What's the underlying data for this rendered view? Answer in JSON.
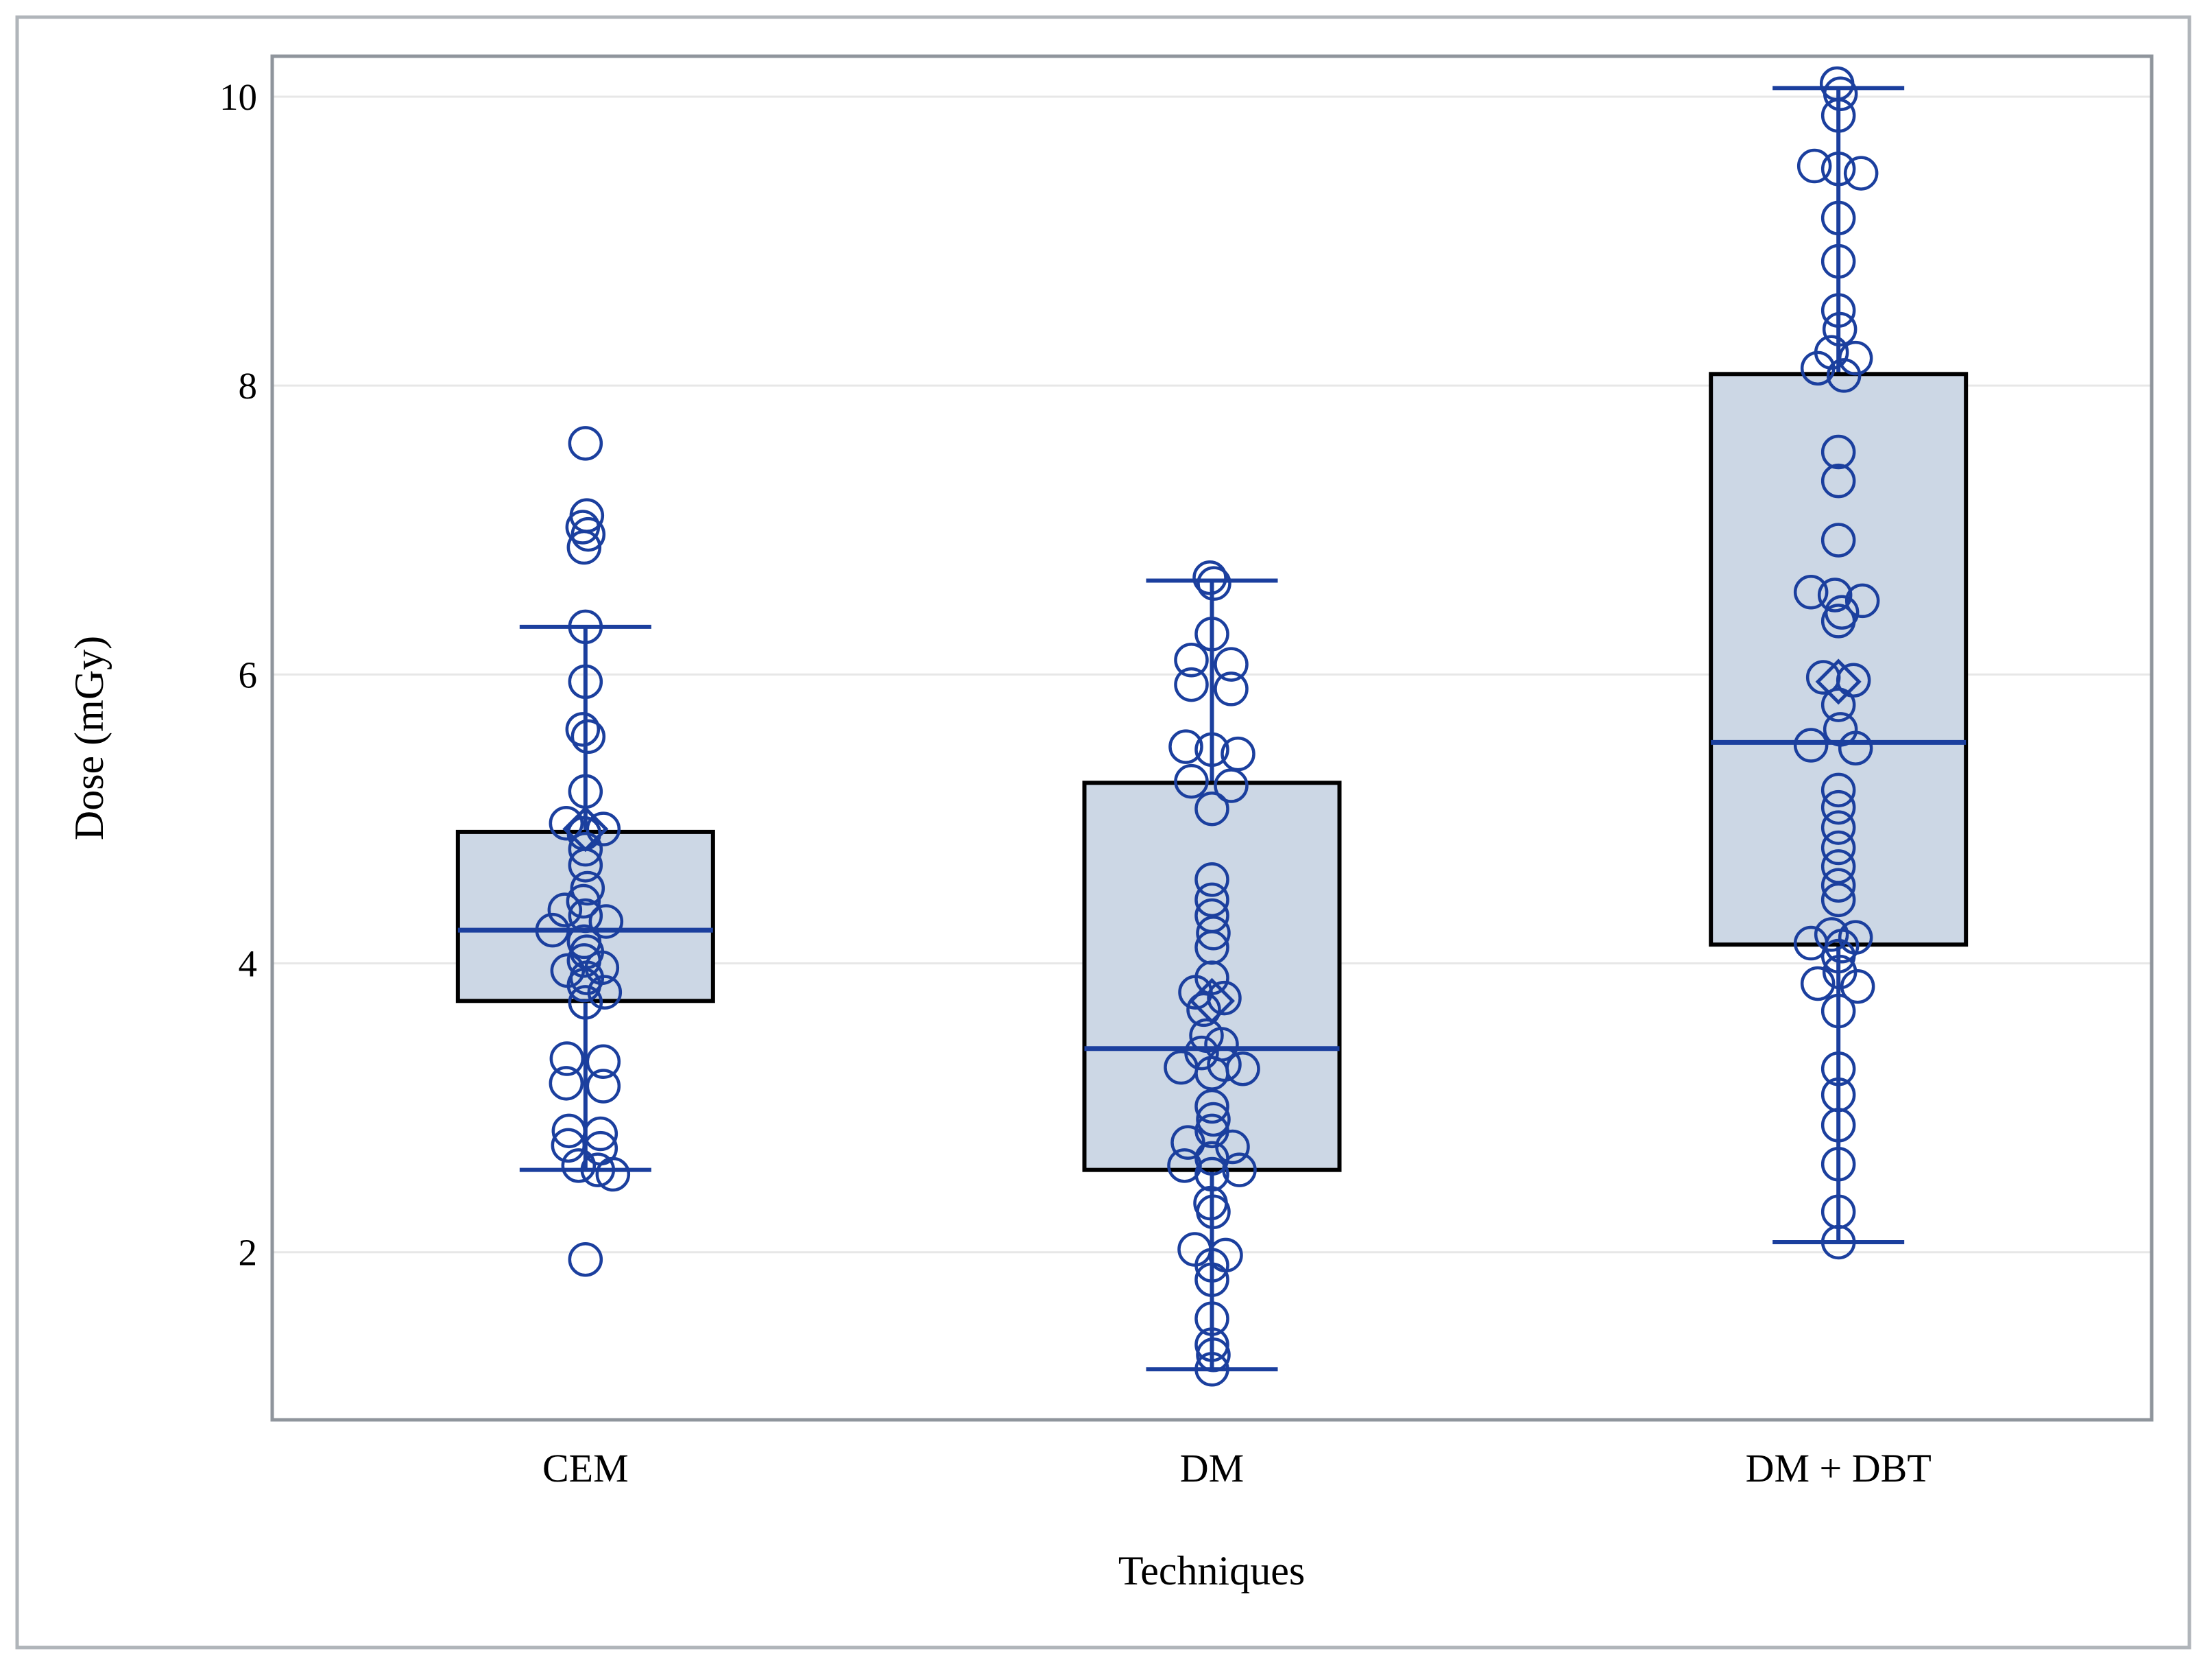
{
  "chart_data": {
    "type": "box",
    "title": "",
    "ylabel": "Dose (mGy)",
    "xlabel": "Techniques",
    "yticks": [
      2,
      4,
      6,
      8,
      10
    ],
    "ylim": [
      0.84,
      10.28
    ],
    "grid": "horizontal",
    "legend": "none",
    "marker": "open-circle",
    "mean_marker": "diamond",
    "colors": {
      "series_blue": "#1b3f9e",
      "box_fill": "#ccd7e5",
      "box_border": "#000000",
      "gridline": "#e7e7e7",
      "plot_frame": "#8f959c",
      "outer_border": "#b0b5ba",
      "text": "#000000",
      "background": "#ffffff"
    },
    "groups": [
      {
        "label": "CEM",
        "whisker_low": 2.57,
        "q1": 3.74,
        "median": 4.23,
        "q3": 4.91,
        "whisker_high": 6.33,
        "mean": 4.93,
        "points": [
          [
            7.6,
            0
          ],
          [
            7.1,
            2
          ],
          [
            7.02,
            -4
          ],
          [
            6.97,
            4
          ],
          [
            6.88,
            -2
          ],
          [
            6.33,
            0
          ],
          [
            5.95,
            0
          ],
          [
            5.62,
            -4
          ],
          [
            5.57,
            4
          ],
          [
            5.19,
            0
          ],
          [
            4.97,
            -28
          ],
          [
            4.93,
            26
          ],
          [
            4.9,
            -2
          ],
          [
            4.79,
            0
          ],
          [
            4.68,
            0
          ],
          [
            4.52,
            3
          ],
          [
            4.43,
            -3
          ],
          [
            4.37,
            -30
          ],
          [
            4.33,
            0
          ],
          [
            4.29,
            30
          ],
          [
            4.23,
            -48
          ],
          [
            4.15,
            -2
          ],
          [
            4.08,
            2
          ],
          [
            4.02,
            -2
          ],
          [
            3.97,
            24
          ],
          [
            3.95,
            -26
          ],
          [
            3.9,
            2
          ],
          [
            3.85,
            -2
          ],
          [
            3.8,
            28
          ],
          [
            3.73,
            0
          ],
          [
            3.34,
            -27
          ],
          [
            3.32,
            26
          ],
          [
            3.17,
            -28
          ],
          [
            3.15,
            26
          ],
          [
            2.84,
            -24
          ],
          [
            2.82,
            22
          ],
          [
            2.74,
            -25
          ],
          [
            2.72,
            22
          ],
          [
            2.6,
            -10
          ],
          [
            2.57,
            18
          ],
          [
            2.54,
            40
          ],
          [
            1.95,
            0
          ]
        ]
      },
      {
        "label": "DM",
        "whisker_low": 1.19,
        "q1": 2.57,
        "median": 3.41,
        "q3": 5.25,
        "whisker_high": 6.65,
        "mean": 3.74,
        "points": [
          [
            6.67,
            -3
          ],
          [
            6.63,
            3
          ],
          [
            6.28,
            0
          ],
          [
            6.1,
            -30
          ],
          [
            6.07,
            28
          ],
          [
            5.93,
            -30
          ],
          [
            5.9,
            28
          ],
          [
            5.5,
            -38
          ],
          [
            5.48,
            0
          ],
          [
            5.45,
            38
          ],
          [
            5.26,
            -30
          ],
          [
            5.23,
            28
          ],
          [
            5.07,
            0
          ],
          [
            4.58,
            0
          ],
          [
            4.44,
            0
          ],
          [
            4.33,
            0
          ],
          [
            4.21,
            2
          ],
          [
            4.11,
            0
          ],
          [
            3.9,
            0
          ],
          [
            3.8,
            -24
          ],
          [
            3.76,
            18
          ],
          [
            3.68,
            -12
          ],
          [
            3.5,
            -8
          ],
          [
            3.44,
            14
          ],
          [
            3.38,
            -15
          ],
          [
            3.3,
            18
          ],
          [
            3.28,
            -45
          ],
          [
            3.27,
            45
          ],
          [
            3.24,
            0
          ],
          [
            3.01,
            0
          ],
          [
            2.92,
            2
          ],
          [
            2.84,
            0
          ],
          [
            2.76,
            -35
          ],
          [
            2.73,
            30
          ],
          [
            2.65,
            0
          ],
          [
            2.6,
            -40
          ],
          [
            2.57,
            40
          ],
          [
            2.54,
            0
          ],
          [
            2.34,
            -2
          ],
          [
            2.28,
            2
          ],
          [
            2.02,
            -25
          ],
          [
            1.98,
            20
          ],
          [
            1.91,
            0
          ],
          [
            1.81,
            0
          ],
          [
            1.54,
            0
          ],
          [
            1.36,
            0
          ],
          [
            1.29,
            2
          ],
          [
            1.19,
            0
          ]
        ]
      },
      {
        "label": "DM + DBT",
        "whisker_low": 2.07,
        "q1": 4.13,
        "median": 5.53,
        "q3": 8.08,
        "whisker_high": 10.06,
        "mean": 5.95,
        "points": [
          [
            10.09,
            -2
          ],
          [
            10.02,
            3
          ],
          [
            9.87,
            0
          ],
          [
            9.52,
            -35
          ],
          [
            9.5,
            0
          ],
          [
            9.47,
            33
          ],
          [
            9.16,
            0
          ],
          [
            8.86,
            0
          ],
          [
            8.52,
            0
          ],
          [
            8.39,
            2
          ],
          [
            8.23,
            -10
          ],
          [
            8.19,
            25
          ],
          [
            8.12,
            -30
          ],
          [
            8.07,
            8
          ],
          [
            7.54,
            0
          ],
          [
            7.34,
            0
          ],
          [
            6.93,
            0
          ],
          [
            6.57,
            -40
          ],
          [
            6.55,
            -5
          ],
          [
            6.51,
            35
          ],
          [
            6.43,
            5
          ],
          [
            6.37,
            0
          ],
          [
            5.98,
            -22
          ],
          [
            5.96,
            22
          ],
          [
            5.79,
            0
          ],
          [
            5.62,
            3
          ],
          [
            5.51,
            -40
          ],
          [
            5.49,
            25
          ],
          [
            5.2,
            0
          ],
          [
            5.08,
            0
          ],
          [
            4.94,
            0
          ],
          [
            4.8,
            0
          ],
          [
            4.67,
            0
          ],
          [
            4.54,
            0
          ],
          [
            4.44,
            0
          ],
          [
            4.2,
            -10
          ],
          [
            4.18,
            25
          ],
          [
            4.14,
            -40
          ],
          [
            4.12,
            5
          ],
          [
            4.05,
            0
          ],
          [
            3.94,
            2
          ],
          [
            3.86,
            -30
          ],
          [
            3.84,
            28
          ],
          [
            3.67,
            0
          ],
          [
            3.27,
            0
          ],
          [
            3.09,
            0
          ],
          [
            2.88,
            0
          ],
          [
            2.61,
            0
          ],
          [
            2.28,
            0
          ],
          [
            2.07,
            0
          ]
        ]
      }
    ]
  }
}
